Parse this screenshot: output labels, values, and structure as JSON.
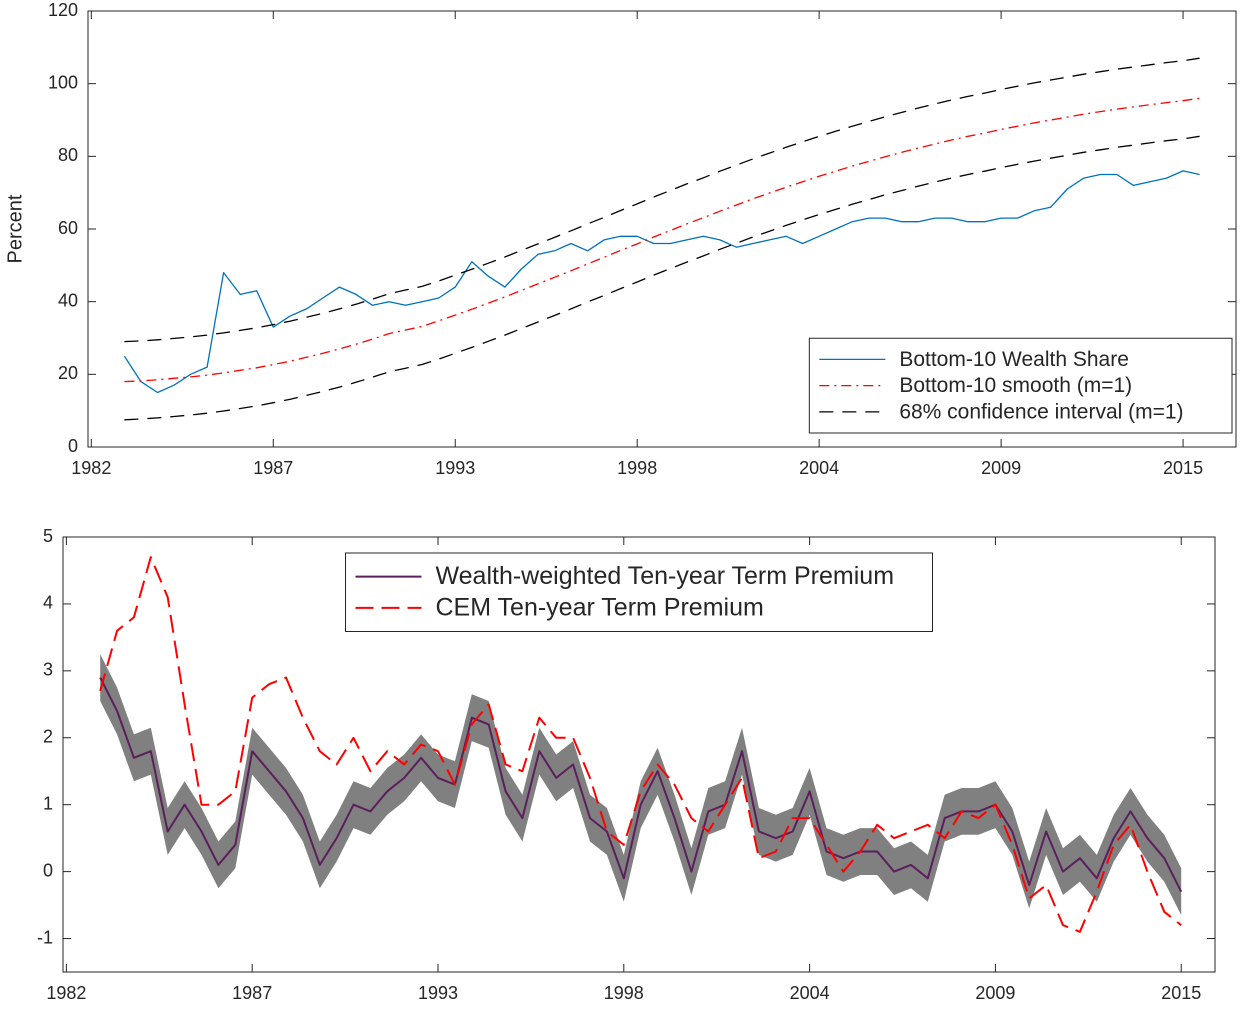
{
  "chart_data": [
    {
      "type": "line",
      "y_label": "Percent",
      "legend": "southeast",
      "xlim": [
        1981.9,
        2016.6
      ],
      "xticks": [
        1982,
        {
          "value": 1987.5,
          "label": "1987"
        },
        1993,
        {
          "value": 1998.5,
          "label": "1998"
        },
        2004,
        {
          "value": 2009.5,
          "label": "2009"
        },
        2015
      ],
      "ylim": [
        0,
        120
      ],
      "yticks": [
        0,
        20,
        40,
        60,
        80,
        100,
        120
      ],
      "x": [
        1983,
        1983.5,
        1984,
        1984.5,
        1985,
        1985.5,
        1986,
        1986.5,
        1987,
        1987.5,
        1988,
        1988.5,
        1989,
        1989.5,
        1990,
        1990.5,
        1991,
        1991.5,
        1992,
        1992.5,
        1993,
        1993.5,
        1994,
        1994.5,
        1995,
        1995.5,
        1996,
        1996.5,
        1997,
        1997.5,
        1998,
        1998.5,
        1999,
        1999.5,
        2000,
        2000.5,
        2001,
        2001.5,
        2002,
        2002.5,
        2003,
        2003.5,
        2004,
        2004.5,
        2005,
        2005.5,
        2006,
        2006.5,
        2007,
        2007.5,
        2008,
        2008.5,
        2009,
        2009.5,
        2010,
        2010.5,
        2011,
        2011.5,
        2012,
        2012.5,
        2013,
        2013.5,
        2014,
        2014.5,
        2015,
        2015.5
      ],
      "series": [
        {
          "name": "Bottom-10 Wealth Share",
          "color": "#0072bd",
          "style": "solid",
          "values": [
            25,
            18,
            15,
            17,
            20,
            22,
            48,
            42,
            43,
            33,
            36,
            38,
            41,
            44,
            42,
            39,
            40,
            39,
            40,
            41,
            44,
            51,
            47,
            44,
            49,
            53,
            54,
            56,
            54,
            57,
            58,
            58,
            56,
            56,
            57,
            58,
            57,
            55,
            56,
            57,
            58,
            56,
            58,
            60,
            62,
            63,
            63,
            62,
            62,
            63,
            63,
            62,
            62,
            63,
            63,
            65,
            66,
            71,
            74,
            75,
            75,
            72,
            73,
            74,
            76,
            75
          ]
        },
        {
          "name": "Bottom-10 smooth (m=1)",
          "color": "#ff0000",
          "style": "dashdot",
          "values": [
            18.0,
            18.2,
            18.5,
            18.9,
            19.3,
            19.8,
            20.4,
            21.1,
            21.8,
            22.7,
            23.6,
            24.7,
            25.8,
            27.0,
            28.3,
            29.7,
            31.2,
            32.2,
            33.2,
            34.7,
            36.3,
            37.9,
            39.6,
            41.3,
            43.1,
            44.9,
            46.7,
            48.5,
            50.4,
            52.2,
            54.1,
            55.9,
            57.8,
            59.6,
            61.4,
            63.1,
            64.9,
            66.6,
            68.3,
            69.9,
            71.5,
            73.0,
            74.5,
            75.9,
            77.3,
            78.6,
            79.9,
            81.1,
            82.3,
            83.4,
            84.5,
            85.5,
            86.4,
            87.4,
            88.3,
            89.2,
            90.0,
            90.8,
            91.6,
            92.3,
            93.0,
            93.6,
            94.2,
            94.8,
            95.3,
            96.0
          ]
        },
        {
          "name": "68% confidence interval (m=1)",
          "color": "#000000",
          "style": "dashed",
          "upper": [
            29.0,
            29.2,
            29.5,
            29.9,
            30.3,
            30.8,
            31.4,
            32.1,
            32.8,
            33.7,
            34.6,
            35.7,
            36.8,
            38.0,
            39.3,
            40.7,
            42.2,
            43.2,
            44.2,
            45.7,
            47.3,
            48.9,
            50.6,
            52.3,
            54.1,
            55.9,
            57.7,
            59.5,
            61.4,
            63.2,
            65.1,
            66.9,
            68.8,
            70.6,
            72.4,
            74.1,
            75.9,
            77.6,
            79.3,
            80.9,
            82.5,
            84.0,
            85.5,
            86.9,
            88.3,
            89.6,
            90.9,
            92.1,
            93.3,
            94.4,
            95.5,
            96.5,
            97.4,
            98.4,
            99.3,
            100.2,
            101.0,
            101.8,
            102.6,
            103.3,
            104.0,
            104.6,
            105.2,
            105.8,
            106.3,
            107.0
          ],
          "lower": [
            7.5,
            7.7,
            8.0,
            8.4,
            8.8,
            9.3,
            9.9,
            10.6,
            11.3,
            12.2,
            13.1,
            14.2,
            15.3,
            16.5,
            17.8,
            19.2,
            20.7,
            21.7,
            22.7,
            24.2,
            25.8,
            27.4,
            29.1,
            30.8,
            32.6,
            34.4,
            36.2,
            38.0,
            39.9,
            41.7,
            43.6,
            45.4,
            47.3,
            49.1,
            50.9,
            52.6,
            54.4,
            56.1,
            57.8,
            59.4,
            61.0,
            62.5,
            64.0,
            65.4,
            66.8,
            68.1,
            69.4,
            70.6,
            71.8,
            72.9,
            74.0,
            75.0,
            75.9,
            76.9,
            77.8,
            78.7,
            79.5,
            80.3,
            81.1,
            81.8,
            82.5,
            83.1,
            83.7,
            84.3,
            84.8,
            85.5
          ]
        }
      ]
    },
    {
      "type": "line",
      "legend": "north",
      "xlim": [
        1981.9,
        2016.0
      ],
      "xticks": [
        1982,
        {
          "value": 1987.5,
          "label": "1987"
        },
        1993,
        {
          "value": 1998.5,
          "label": "1998"
        },
        2004,
        {
          "value": 2009.5,
          "label": "2009"
        },
        2015
      ],
      "ylim": [
        -1.5,
        5
      ],
      "yticks": [
        -1,
        0,
        1,
        2,
        3,
        4,
        5
      ],
      "x": [
        1983,
        1983.5,
        1984,
        1984.5,
        1985,
        1985.5,
        1986,
        1986.5,
        1987,
        1987.5,
        1988,
        1988.5,
        1989,
        1989.5,
        1990,
        1990.5,
        1991,
        1991.5,
        1992,
        1992.5,
        1993,
        1993.5,
        1994,
        1994.5,
        1995,
        1995.5,
        1996,
        1996.5,
        1997,
        1997.5,
        1998,
        1998.5,
        1999,
        1999.5,
        2000,
        2000.5,
        2001,
        2001.5,
        2002,
        2002.5,
        2003,
        2003.5,
        2004,
        2004.5,
        2005,
        2005.5,
        2006,
        2006.5,
        2007,
        2007.5,
        2008,
        2008.5,
        2009,
        2009.5,
        2010,
        2010.5,
        2011,
        2011.5,
        2012,
        2012.5,
        2013,
        2013.5,
        2014,
        2014.5,
        2015
      ],
      "band": {
        "color": "#808080",
        "upper": [
          3.25,
          2.75,
          2.05,
          2.15,
          0.95,
          1.35,
          0.95,
          0.45,
          0.75,
          2.15,
          1.85,
          1.55,
          1.15,
          0.45,
          0.85,
          1.35,
          1.25,
          1.55,
          1.75,
          2.05,
          1.75,
          1.65,
          2.65,
          2.55,
          1.55,
          1.15,
          2.15,
          1.75,
          1.95,
          1.15,
          0.95,
          0.25,
          1.35,
          1.85,
          1.15,
          0.35,
          1.25,
          1.35,
          2.15,
          0.95,
          0.85,
          0.95,
          1.55,
          0.65,
          0.55,
          0.65,
          0.65,
          0.35,
          0.45,
          0.25,
          1.15,
          1.25,
          1.25,
          1.35,
          0.95,
          0.15,
          0.95,
          0.35,
          0.55,
          0.25,
          0.85,
          1.25,
          0.85,
          0.55,
          0.05
        ],
        "lower": [
          2.55,
          2.05,
          1.35,
          1.45,
          0.25,
          0.65,
          0.25,
          -0.25,
          0.05,
          1.45,
          1.15,
          0.85,
          0.45,
          -0.25,
          0.15,
          0.65,
          0.55,
          0.85,
          1.05,
          1.35,
          1.05,
          0.95,
          1.95,
          1.85,
          0.85,
          0.45,
          1.45,
          1.05,
          1.25,
          0.45,
          0.25,
          -0.45,
          0.65,
          1.15,
          0.45,
          -0.35,
          0.55,
          0.65,
          1.45,
          0.25,
          0.15,
          0.25,
          0.85,
          -0.05,
          -0.15,
          -0.05,
          -0.05,
          -0.35,
          -0.25,
          -0.45,
          0.45,
          0.55,
          0.55,
          0.65,
          0.25,
          -0.55,
          0.25,
          -0.35,
          -0.15,
          -0.45,
          0.15,
          0.55,
          0.15,
          -0.15,
          -0.65
        ]
      },
      "series": [
        {
          "name": "Wealth-weighted Ten-year Term Premium",
          "color": "#5b1f5b",
          "style": "solid",
          "values": [
            2.9,
            2.4,
            1.7,
            1.8,
            0.6,
            1.0,
            0.6,
            0.1,
            0.4,
            1.8,
            1.5,
            1.2,
            0.8,
            0.1,
            0.5,
            1.0,
            0.9,
            1.2,
            1.4,
            1.7,
            1.4,
            1.3,
            2.3,
            2.2,
            1.2,
            0.8,
            1.8,
            1.4,
            1.6,
            0.8,
            0.6,
            -0.1,
            1.0,
            1.5,
            0.8,
            0.0,
            0.9,
            1.0,
            1.8,
            0.6,
            0.5,
            0.6,
            1.2,
            0.3,
            0.2,
            0.3,
            0.3,
            0.0,
            0.1,
            -0.1,
            0.8,
            0.9,
            0.9,
            1.0,
            0.6,
            -0.2,
            0.6,
            0.0,
            0.2,
            -0.1,
            0.5,
            0.9,
            0.5,
            0.2,
            -0.3
          ]
        },
        {
          "name": "CEM Ten-year Term Premium",
          "color": "#ff0000",
          "style": "longdash",
          "values": [
            2.7,
            3.6,
            3.8,
            4.7,
            4.1,
            2.5,
            1.0,
            1.0,
            1.2,
            2.6,
            2.8,
            2.9,
            2.3,
            1.8,
            1.6,
            2.0,
            1.5,
            1.8,
            1.6,
            1.9,
            1.8,
            1.3,
            2.2,
            2.5,
            1.6,
            1.5,
            2.3,
            2.0,
            2.0,
            1.4,
            0.6,
            0.4,
            1.2,
            1.6,
            1.3,
            0.8,
            0.6,
            1.0,
            1.4,
            0.2,
            0.3,
            0.8,
            0.8,
            0.4,
            0.0,
            0.3,
            0.7,
            0.5,
            0.6,
            0.7,
            0.5,
            0.9,
            0.8,
            1.0,
            0.4,
            -0.4,
            -0.2,
            -0.8,
            -0.9,
            -0.3,
            0.4,
            0.7,
            0.0,
            -0.6,
            -0.8
          ]
        }
      ]
    }
  ]
}
